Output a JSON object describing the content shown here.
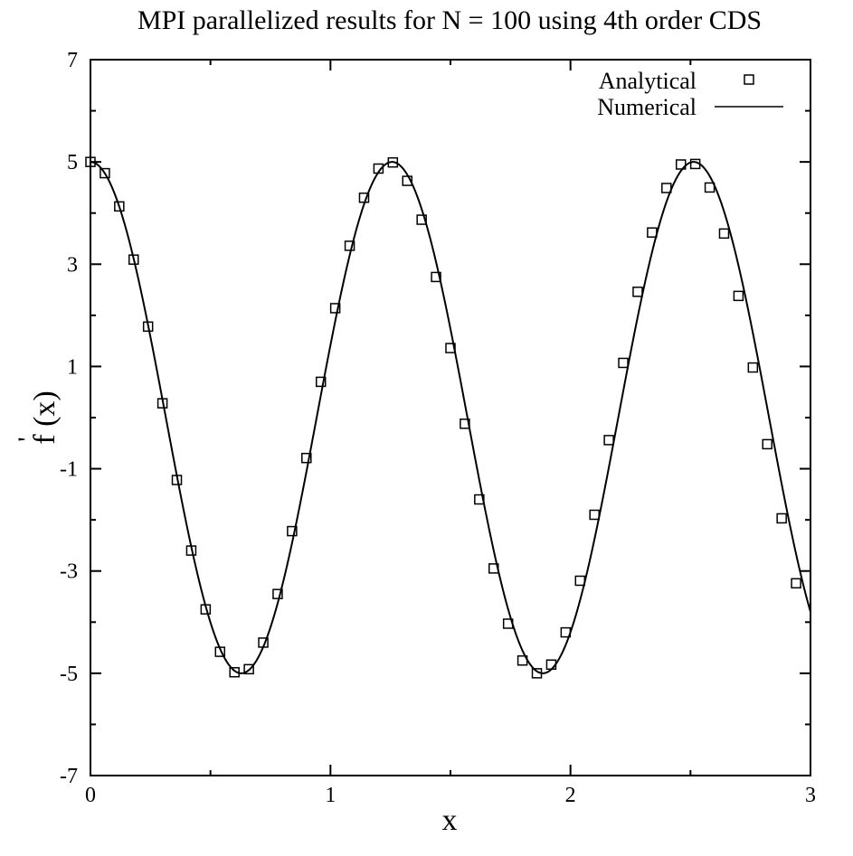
{
  "chart_data": {
    "type": "line",
    "title": "MPI parallelized results for N = 100 using 4th order CDS",
    "xlabel": "x",
    "ylabel": "f (x)",
    "ylabel_prime": "'",
    "xlim": [
      0,
      3
    ],
    "ylim": [
      -7,
      7
    ],
    "x_major_ticks": [
      0,
      1,
      2,
      3
    ],
    "x_tick_labels": [
      "0",
      "1",
      "2",
      "3"
    ],
    "y_major_ticks": [
      -7,
      -5,
      -3,
      -1,
      1,
      3,
      5,
      7
    ],
    "y_tick_labels": [
      "-7",
      "-5",
      "-3",
      "-1",
      "1",
      "3",
      "5",
      "7"
    ],
    "grid": false,
    "legend_position": "top-right",
    "series": [
      {
        "name": "Analytical",
        "marker": "open-square",
        "x": [
          0.0,
          0.06,
          0.12,
          0.18,
          0.24,
          0.3,
          0.36,
          0.42,
          0.48,
          0.54,
          0.6,
          0.66,
          0.72,
          0.78,
          0.84,
          0.9,
          0.96,
          1.02,
          1.08,
          1.14,
          1.2,
          1.26,
          1.32,
          1.38,
          1.44,
          1.5,
          1.56,
          1.62,
          1.68,
          1.74,
          1.8,
          1.86,
          1.92,
          1.98,
          2.04,
          2.1,
          2.16,
          2.22,
          2.28,
          2.34,
          2.4,
          2.46,
          2.52,
          2.58,
          2.64,
          2.7,
          2.76,
          2.82,
          2.88,
          2.94
        ],
        "y": [
          5.0,
          4.78,
          4.13,
          3.09,
          1.78,
          0.28,
          -1.22,
          -2.6,
          -3.75,
          -4.58,
          -4.98,
          -4.92,
          -4.4,
          -3.45,
          -2.22,
          -0.79,
          0.7,
          2.14,
          3.36,
          4.3,
          4.87,
          4.99,
          4.63,
          3.87,
          2.75,
          1.36,
          -0.12,
          -1.6,
          -2.95,
          -4.03,
          -4.75,
          -5.0,
          -4.83,
          -4.2,
          -3.19,
          -1.9,
          -0.44,
          1.07,
          2.46,
          3.62,
          4.49,
          4.95,
          4.96,
          4.5,
          3.6,
          2.38,
          0.98,
          -0.52,
          -1.97,
          -3.24
        ]
      },
      {
        "name": "Numerical",
        "line": "solid",
        "function": "5*cos(5*x)",
        "x_range": [
          0,
          3
        ]
      }
    ]
  },
  "colors": {
    "ink": "#000000",
    "background": "#ffffff"
  }
}
